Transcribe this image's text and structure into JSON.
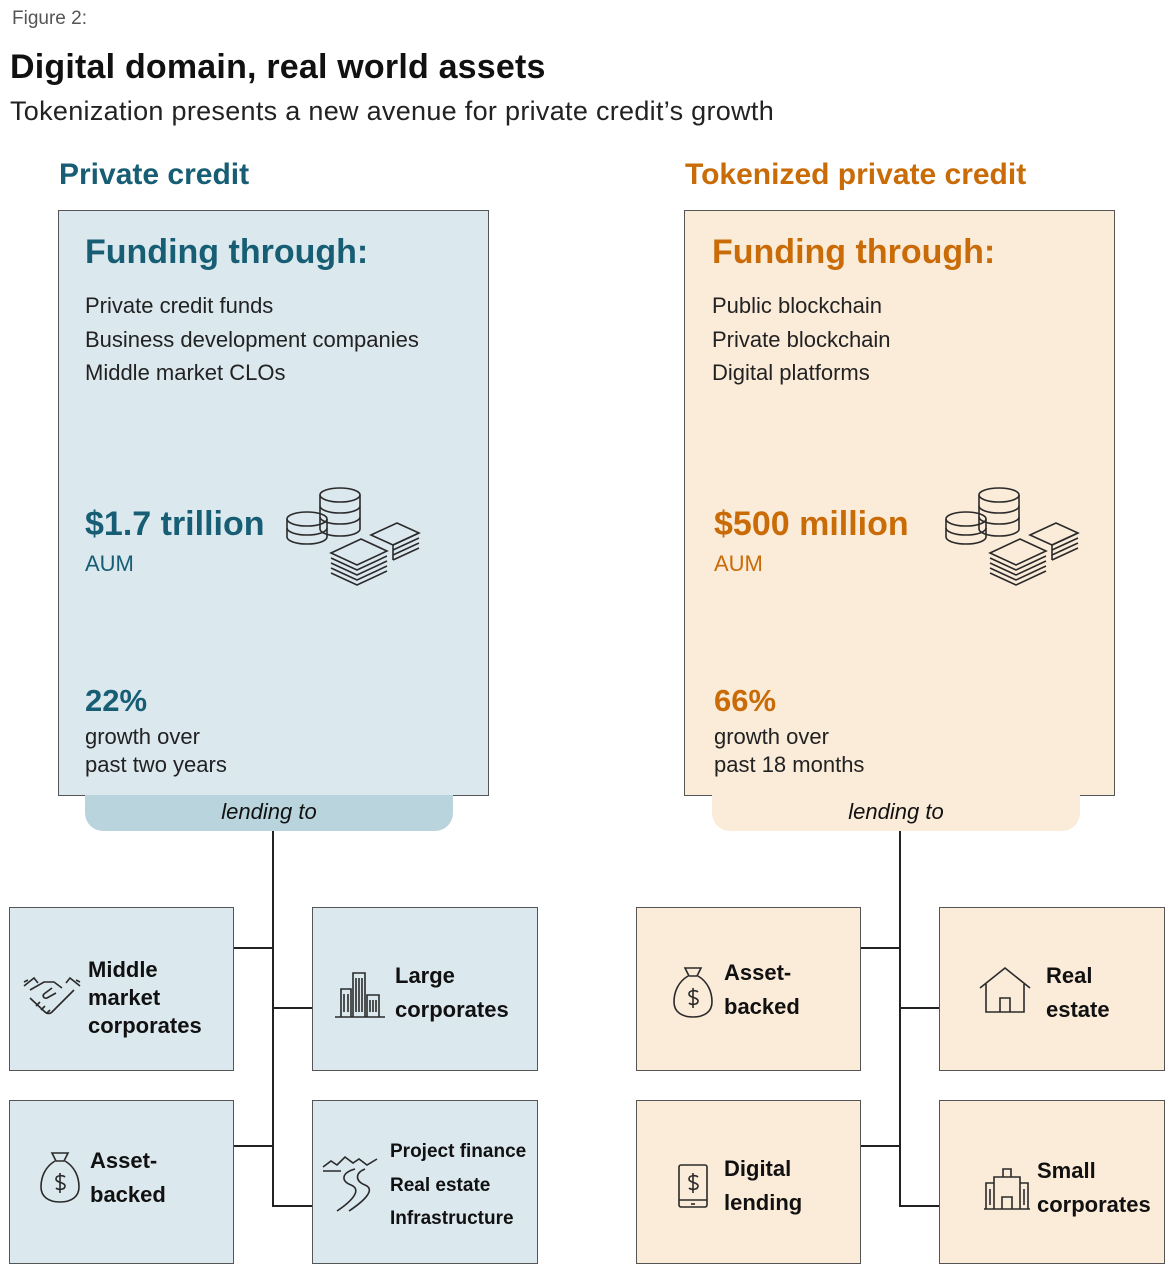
{
  "figure_label": "Figure 2:",
  "title": "Digital domain, real world assets",
  "subtitle": "Tokenization presents a new avenue for private credit’s growth",
  "colors": {
    "blue": "#175e74",
    "orange": "#c96c08",
    "blue_bg": "#dbe8ee",
    "orange_bg": "#fbebd9",
    "blue_pill": "#b9d4dd"
  },
  "private_credit": {
    "heading": "Private credit",
    "funding_heading": "Funding through:",
    "funding_items": [
      "Private credit funds",
      "Business development companies",
      "Middle market CLOs"
    ],
    "aum_value": "$1.7 trillion",
    "aum_label": "AUM",
    "growth_pct": "22%",
    "growth_line1": "growth over",
    "growth_line2": "past two years",
    "lending_to": "lending to",
    "targets": [
      {
        "lines": [
          "Middle",
          "market",
          "corporates"
        ],
        "icon": "handshake-icon"
      },
      {
        "lines": [
          "Large",
          "corporates"
        ],
        "icon": "buildings-icon"
      },
      {
        "lines": [
          "Asset-",
          "backed"
        ],
        "icon": "money-bag-icon"
      },
      {
        "lines": [
          "Project finance",
          "Real estate",
          "Infrastructure"
        ],
        "icon": "road-landscape-icon"
      }
    ]
  },
  "tokenized_private_credit": {
    "heading": "Tokenized private credit",
    "funding_heading": "Funding through:",
    "funding_items": [
      "Public blockchain",
      "Private blockchain",
      "Digital platforms"
    ],
    "aum_value": "$500 million",
    "aum_label": "AUM",
    "growth_pct": "66%",
    "growth_line1": "growth over",
    "growth_line2": "past 18 months",
    "lending_to": "lending to",
    "targets": [
      {
        "lines": [
          "Asset-",
          "backed"
        ],
        "icon": "money-bag-icon"
      },
      {
        "lines": [
          "Real",
          "estate"
        ],
        "icon": "house-icon"
      },
      {
        "lines": [
          "Digital",
          "lending"
        ],
        "icon": "tablet-dollar-icon"
      },
      {
        "lines": [
          "Small",
          "corporates"
        ],
        "icon": "small-building-icon"
      }
    ]
  }
}
